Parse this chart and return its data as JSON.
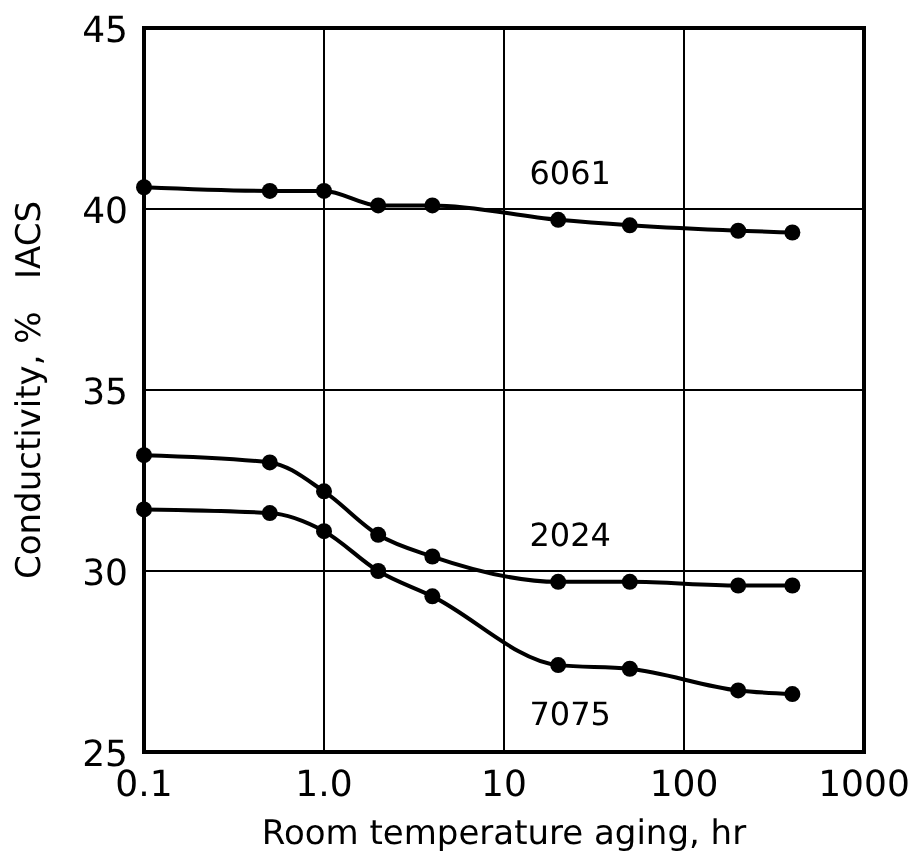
{
  "chart_data": {
    "type": "line",
    "xlabel": "Room temperature aging, hr",
    "ylabel": "Conductivity, %   IACS",
    "log": "x",
    "xlim": [
      0.1,
      1000
    ],
    "xticks": [
      {
        "value": 0.1,
        "label": "0.1"
      },
      {
        "value": 1,
        "label": "1.0"
      },
      10,
      100,
      1000
    ],
    "ylim": [
      25,
      45
    ],
    "yticks": [
      25,
      30,
      35,
      40,
      45
    ],
    "grid": true,
    "marker": "circle",
    "line_style": "solid",
    "x": [
      0.1,
      0.5,
      1,
      2,
      4,
      20,
      50,
      200,
      400
    ],
    "series": [
      {
        "name": "6061",
        "color": "#000000",
        "values": [
          40.6,
          40.5,
          40.5,
          40.1,
          40.1,
          39.7,
          39.55,
          39.4,
          39.35
        ]
      },
      {
        "name": "2024",
        "color": "#000000",
        "values": [
          33.2,
          33.0,
          32.2,
          31.0,
          30.4,
          29.7,
          29.7,
          29.6,
          29.6
        ]
      },
      {
        "name": "7075",
        "color": "#000000",
        "values": [
          31.7,
          31.6,
          31.1,
          30.0,
          29.3,
          27.4,
          27.3,
          26.7,
          26.6
        ]
      }
    ]
  }
}
